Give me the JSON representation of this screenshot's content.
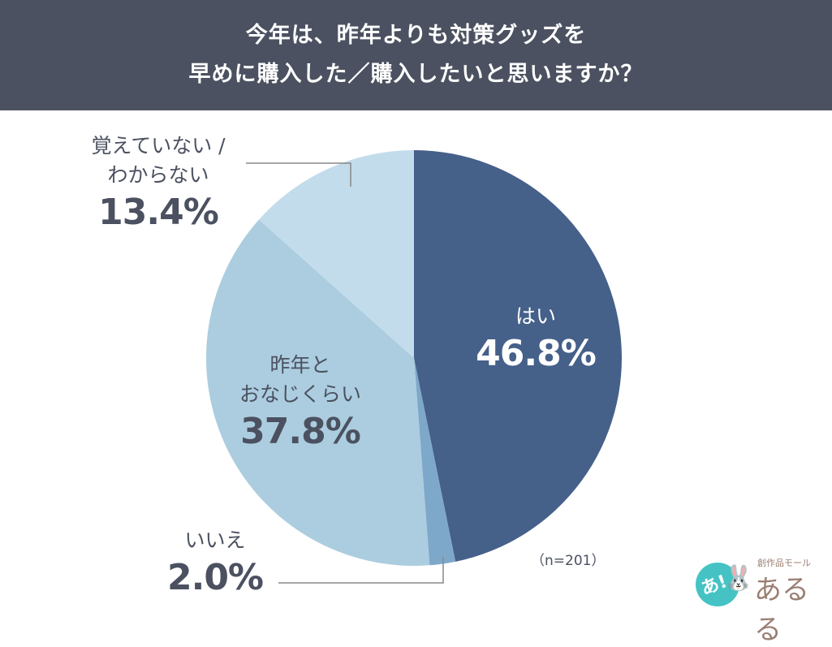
{
  "header": {
    "title_line1": "今年は、昨年よりも対策グッズを",
    "title_line2": "早めに購入した／購入したいと思いますか？",
    "bg_color": "#4b5160"
  },
  "chart_data": {
    "type": "pie",
    "title": "今年は、昨年よりも対策グッズを早めに購入した／購入したいと思いますか？",
    "categories": [
      "はい",
      "いいえ",
      "昨年とおなじくらい",
      "覚えていない / わからない"
    ],
    "values": [
      46.8,
      2.0,
      37.8,
      13.4
    ],
    "unit": "%",
    "colors": [
      "#456089",
      "#7ea8c9",
      "#abcddf",
      "#c3dceb"
    ],
    "start_angle": "12 o'clock, clockwise",
    "sample_size": "n=201"
  },
  "labels": {
    "yes": {
      "cat": "はい",
      "pct": "46.8%"
    },
    "no": {
      "cat": "いいえ",
      "pct": "2.0%"
    },
    "same_line1": "昨年と",
    "same_line2": "おなじくらい",
    "same_pct": "37.8%",
    "dontknow_line1": "覚えていない /",
    "dontknow_line2": "わからない",
    "dontknow_pct": "13.4%"
  },
  "note": "（n=201）",
  "logo": {
    "subtitle": "創作品モール",
    "name": "あるる",
    "badge": "あ!"
  }
}
